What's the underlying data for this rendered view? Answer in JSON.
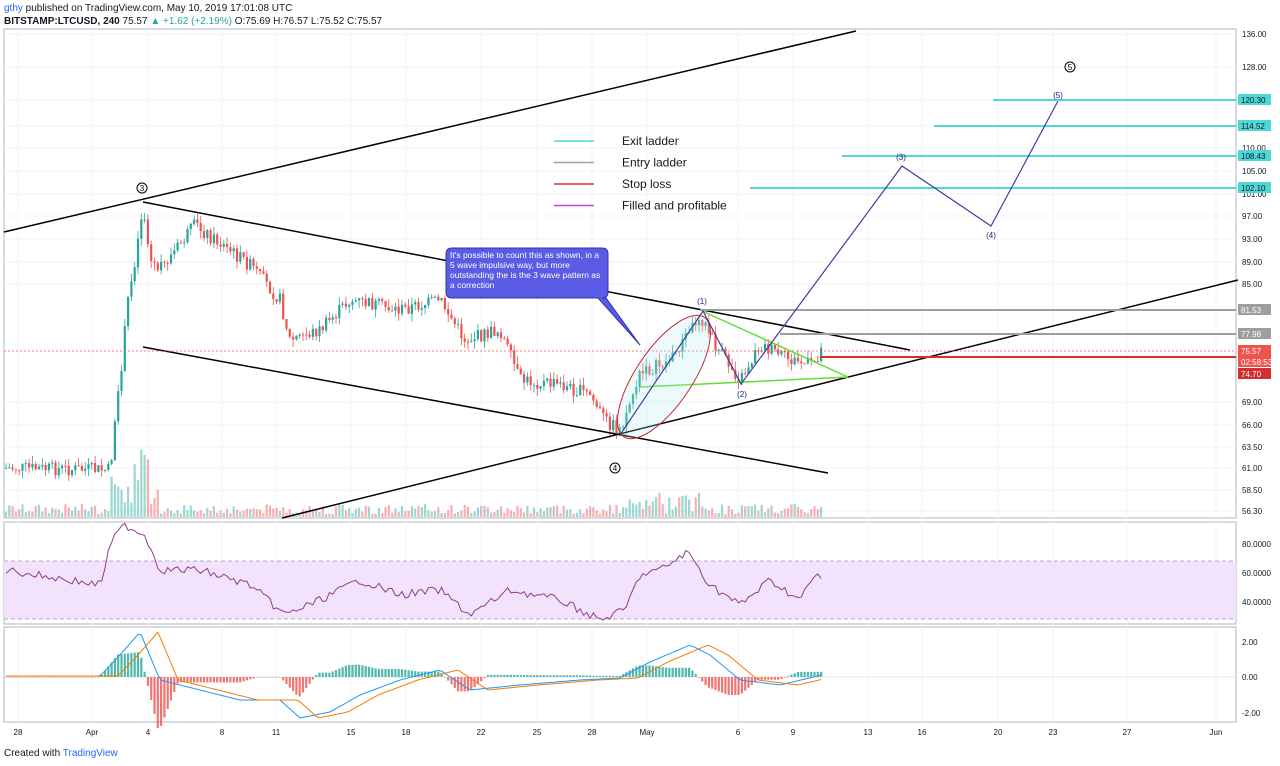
{
  "header": {
    "user": "gthy",
    "published": " published on TradingView.com, May 10, 2019 17:01:08 UTC",
    "symbol": "BITSTAMP:LTCUSD, 240",
    "last": "75.57",
    "change": "▲ +1.62 (+2.19%)",
    "ohlc": "O:75.69 H:76.57 L:75.52 C:75.57"
  },
  "footer": {
    "created_with": "Created with",
    "brand": "TradingView"
  },
  "legend": [
    {
      "label": "Exit ladder",
      "color": "#4dd8d8"
    },
    {
      "label": "Entry ladder",
      "color": "#9e9e9e"
    },
    {
      "label": "Stop loss",
      "color": "#d32f2f"
    },
    {
      "label": "Filled and profitable",
      "color": "#c840d8"
    }
  ],
  "callout_text": "It's possible to count this as shown, in a 5 wave impulsive way, but more outstanding the is the 3 wave pattern as a correction",
  "wave_labels": {
    "big_3": "3",
    "big_4": "4",
    "big_5": "5",
    "w1": "(1)",
    "w2": "(2)",
    "w3": "(3)",
    "w4": "(4)",
    "w5": "(5)"
  },
  "chart_data": [
    {
      "type": "candlestick",
      "price_axis_ticks": [
        "136.00",
        "128.00",
        "120.00",
        "114.00",
        "110.00",
        "105.00",
        "101.00",
        "97.00",
        "93.00",
        "89.00",
        "85.00",
        "69.00",
        "66.00",
        "63.50",
        "61.00",
        "58.50",
        "56.30"
      ],
      "price_labels": [
        {
          "value": "120.30",
          "color": "#4dd8d8"
        },
        {
          "value": "114.52",
          "color": "#4dd8d8"
        },
        {
          "value": "108.43",
          "color": "#4dd8d8"
        },
        {
          "value": "102.10",
          "color": "#4dd8d8"
        },
        {
          "value": "81.53",
          "color": "#9e9e9e"
        },
        {
          "value": "77.98",
          "color": "#9e9e9e"
        },
        {
          "value": "75.57",
          "color": "#ef5350"
        },
        {
          "value": "02:58:53",
          "color": "#ef5350"
        },
        {
          "value": "74.70",
          "color": "#d32f2f"
        }
      ],
      "time_axis_ticks": [
        "28",
        "Apr",
        "4",
        "8",
        "11",
        "15",
        "18",
        "22",
        "25",
        "28",
        "May",
        "6",
        "9",
        "13",
        "16",
        "20",
        "23",
        "27",
        "Jun"
      ]
    },
    {
      "type": "line",
      "name": "RSI",
      "y_ticks": [
        "80.0000",
        "60.0000",
        "40.0000"
      ]
    },
    {
      "type": "bar",
      "name": "MACD",
      "y_ticks": [
        "2.00",
        "0.00",
        "-2.00"
      ]
    }
  ]
}
